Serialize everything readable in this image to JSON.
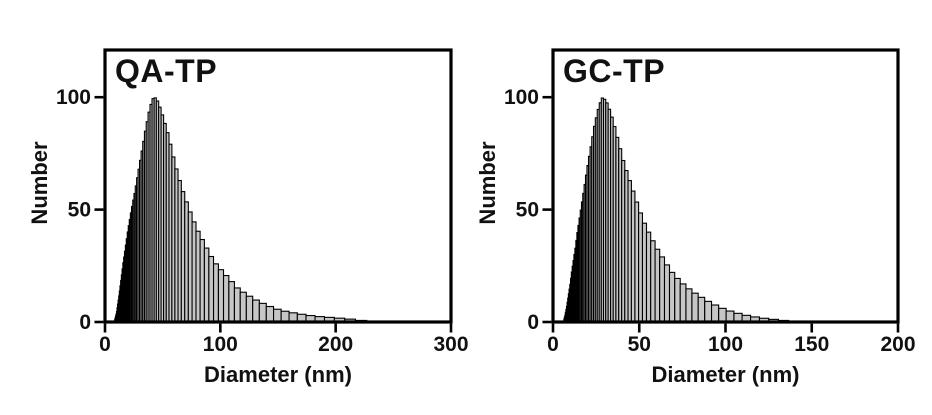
{
  "figure": {
    "background": "#ffffff",
    "axis_color": "#000000",
    "text_color": "#111111"
  },
  "chart_data": [
    {
      "type": "bar",
      "subtype": "size-distribution-histogram",
      "title": "QA-TP",
      "xlabel": "Diameter (nm)",
      "ylabel": "Number",
      "xlim": [
        0,
        300
      ],
      "ylim": [
        0,
        121
      ],
      "x_ticks": [
        0,
        100,
        200,
        300
      ],
      "y_ticks": [
        0,
        50,
        100
      ],
      "grid": false,
      "legend": null,
      "bar_fill": "#c6c6c6",
      "bar_edge": "#000000",
      "bins": {
        "start_nm": 8,
        "ratio": 1.045,
        "end_nm": 235
      },
      "envelope": [
        [
          8,
          0
        ],
        [
          10,
          4
        ],
        [
          12,
          11
        ],
        [
          14,
          19
        ],
        [
          16,
          27
        ],
        [
          18,
          34
        ],
        [
          20,
          41
        ],
        [
          23,
          50
        ],
        [
          26,
          58
        ],
        [
          29,
          67
        ],
        [
          32,
          76
        ],
        [
          35,
          85
        ],
        [
          38,
          93
        ],
        [
          41,
          99
        ],
        [
          43,
          100
        ],
        [
          45,
          99
        ],
        [
          48,
          95
        ],
        [
          51,
          90
        ],
        [
          55,
          83
        ],
        [
          59,
          74
        ],
        [
          63,
          66
        ],
        [
          67,
          59
        ],
        [
          71,
          53
        ],
        [
          76,
          46
        ],
        [
          81,
          40
        ],
        [
          86,
          35
        ],
        [
          91,
          30
        ],
        [
          96,
          26
        ],
        [
          101,
          23
        ],
        [
          108,
          19
        ],
        [
          115,
          15
        ],
        [
          122,
          12.5
        ],
        [
          130,
          10
        ],
        [
          138,
          8
        ],
        [
          147,
          6
        ],
        [
          156,
          4.8
        ],
        [
          166,
          3.8
        ],
        [
          176,
          3
        ],
        [
          186,
          2.4
        ],
        [
          196,
          2
        ],
        [
          206,
          1.6
        ],
        [
          214,
          1.2
        ],
        [
          222,
          0.7
        ],
        [
          230,
          0.3
        ],
        [
          238,
          0
        ]
      ]
    },
    {
      "type": "bar",
      "subtype": "size-distribution-histogram",
      "title": "GC-TP",
      "xlabel": "Diameter (nm)",
      "ylabel": "Number",
      "xlim": [
        0,
        200
      ],
      "ylim": [
        0,
        121
      ],
      "x_ticks": [
        0,
        50,
        100,
        150,
        200
      ],
      "y_ticks": [
        0,
        50,
        100
      ],
      "grid": false,
      "legend": null,
      "bar_fill": "#c6c6c6",
      "bar_edge": "#000000",
      "bins": {
        "start_nm": 6,
        "ratio": 1.045,
        "end_nm": 145
      },
      "envelope": [
        [
          6,
          0
        ],
        [
          7,
          3
        ],
        [
          8,
          7
        ],
        [
          9,
          12
        ],
        [
          10,
          17
        ],
        [
          11,
          23
        ],
        [
          12,
          28
        ],
        [
          13,
          33
        ],
        [
          14,
          39
        ],
        [
          15,
          44
        ],
        [
          16,
          49
        ],
        [
          17,
          54
        ],
        [
          18,
          59
        ],
        [
          19,
          64
        ],
        [
          20,
          69
        ],
        [
          22,
          78
        ],
        [
          24,
          87
        ],
        [
          26,
          94
        ],
        [
          28,
          99
        ],
        [
          29,
          100
        ],
        [
          31,
          98
        ],
        [
          33,
          94
        ],
        [
          35,
          89
        ],
        [
          37,
          83
        ],
        [
          39,
          77
        ],
        [
          41,
          71
        ],
        [
          44,
          64
        ],
        [
          47,
          57
        ],
        [
          50,
          50
        ],
        [
          53,
          44
        ],
        [
          56,
          39
        ],
        [
          60,
          33
        ],
        [
          64,
          28
        ],
        [
          68,
          23
        ],
        [
          72,
          19.5
        ],
        [
          76,
          16.5
        ],
        [
          80,
          14
        ],
        [
          84,
          12
        ],
        [
          88,
          10
        ],
        [
          92,
          8.3
        ],
        [
          96,
          6.8
        ],
        [
          100,
          5.5
        ],
        [
          105,
          4.3
        ],
        [
          110,
          3.3
        ],
        [
          115,
          2.5
        ],
        [
          120,
          1.9
        ],
        [
          125,
          1.4
        ],
        [
          130,
          1
        ],
        [
          136,
          0.5
        ],
        [
          142,
          0
        ]
      ]
    }
  ]
}
